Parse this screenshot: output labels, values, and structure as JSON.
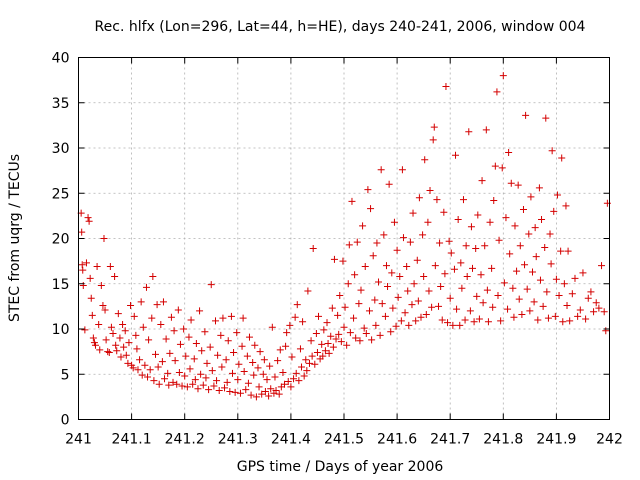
{
  "chart_data": {
    "type": "scatter",
    "title": "Rec. hlfx (Lon=296, Lat=44, h=HE), days 240-241, 2006, window 004",
    "xlabel": "GPS time / Days of year 2006",
    "ylabel": "STEC from uqrg / TECUs",
    "xlim": [
      241,
      242
    ],
    "ylim": [
      0,
      40
    ],
    "xticks": [
      241,
      241.1,
      241.2,
      241.3,
      241.4,
      241.5,
      241.6,
      241.7,
      241.8,
      241.9,
      242
    ],
    "xtick_labels": [
      "241",
      "241.1",
      "241.2",
      "241.3",
      "241.4",
      "241.5",
      "241.6",
      "241.7",
      "241.8",
      "241.9",
      "242"
    ],
    "yticks": [
      0,
      5,
      10,
      15,
      20,
      25,
      30,
      35,
      40
    ],
    "ytick_labels": [
      "0",
      "5",
      "10",
      "15",
      "20",
      "25",
      "30",
      "35",
      "40"
    ],
    "grid": true,
    "marker": "plus",
    "color": "#d40000",
    "points": [
      [
        241.005,
        22.8
      ],
      [
        241.006,
        20.7
      ],
      [
        241.007,
        17.1
      ],
      [
        241.008,
        16.5
      ],
      [
        241.009,
        14.8
      ],
      [
        241.012,
        9.9
      ],
      [
        241.015,
        17.3
      ],
      [
        241.018,
        22.3
      ],
      [
        241.02,
        21.9
      ],
      [
        241.022,
        15.6
      ],
      [
        241.024,
        13.4
      ],
      [
        241.026,
        11.5
      ],
      [
        241.028,
        9.0
      ],
      [
        241.03,
        8.5
      ],
      [
        241.032,
        8.2
      ],
      [
        241.035,
        16.9
      ],
      [
        241.038,
        10.5
      ],
      [
        241.04,
        7.7
      ],
      [
        241.043,
        14.8
      ],
      [
        241.046,
        12.6
      ],
      [
        241.048,
        20.0
      ],
      [
        241.05,
        12.1
      ],
      [
        241.052,
        8.8
      ],
      [
        241.055,
        7.5
      ],
      [
        241.058,
        7.4
      ],
      [
        241.06,
        16.9
      ],
      [
        241.062,
        10.2
      ],
      [
        241.065,
        9.5
      ],
      [
        241.068,
        15.8
      ],
      [
        241.07,
        8.2
      ],
      [
        241.072,
        7.6
      ],
      [
        241.075,
        11.7
      ],
      [
        241.078,
        9.0
      ],
      [
        241.08,
        6.9
      ],
      [
        241.083,
        10.5
      ],
      [
        241.085,
        8.0
      ],
      [
        241.088,
        9.8
      ],
      [
        241.09,
        7.1
      ],
      [
        241.093,
        6.2
      ],
      [
        241.095,
        8.5
      ],
      [
        241.098,
        12.6
      ],
      [
        241.1,
        6.0
      ],
      [
        241.103,
        5.7
      ],
      [
        241.105,
        11.4
      ],
      [
        241.108,
        9.3
      ],
      [
        241.11,
        7.8
      ],
      [
        241.112,
        5.5
      ],
      [
        241.115,
        6.6
      ],
      [
        241.118,
        13.0
      ],
      [
        241.12,
        4.9
      ],
      [
        241.122,
        10.2
      ],
      [
        241.125,
        6.0
      ],
      [
        241.128,
        14.6
      ],
      [
        241.13,
        4.7
      ],
      [
        241.132,
        8.8
      ],
      [
        241.135,
        5.5
      ],
      [
        241.138,
        11.2
      ],
      [
        241.14,
        15.8
      ],
      [
        241.142,
        4.3
      ],
      [
        241.145,
        7.2
      ],
      [
        241.148,
        12.7
      ],
      [
        241.15,
        5.8
      ],
      [
        241.152,
        3.9
      ],
      [
        241.155,
        10.5
      ],
      [
        241.158,
        6.4
      ],
      [
        241.16,
        13.0
      ],
      [
        241.162,
        4.5
      ],
      [
        241.165,
        8.9
      ],
      [
        241.168,
        5.1
      ],
      [
        241.17,
        3.8
      ],
      [
        241.172,
        7.3
      ],
      [
        241.175,
        11.3
      ],
      [
        241.178,
        4.1
      ],
      [
        241.18,
        9.8
      ],
      [
        241.182,
        6.5
      ],
      [
        241.185,
        3.9
      ],
      [
        241.188,
        12.1
      ],
      [
        241.19,
        5.2
      ],
      [
        241.192,
        8.3
      ],
      [
        241.195,
        3.7
      ],
      [
        241.198,
        10.0
      ],
      [
        241.2,
        4.8
      ],
      [
        241.202,
        7.0
      ],
      [
        241.205,
        3.6
      ],
      [
        241.208,
        9.1
      ],
      [
        241.21,
        5.6
      ],
      [
        241.212,
        11.0
      ],
      [
        241.215,
        3.9
      ],
      [
        241.218,
        6.7
      ],
      [
        241.22,
        4.4
      ],
      [
        241.222,
        8.4
      ],
      [
        241.225,
        3.4
      ],
      [
        241.228,
        12.0
      ],
      [
        241.23,
        5.0
      ],
      [
        241.232,
        7.6
      ],
      [
        241.235,
        3.8
      ],
      [
        241.238,
        9.7
      ],
      [
        241.24,
        4.6
      ],
      [
        241.242,
        6.2
      ],
      [
        241.245,
        3.3
      ],
      [
        241.248,
        8.0
      ],
      [
        241.25,
        14.9
      ],
      [
        241.252,
        5.4
      ],
      [
        241.255,
        3.7
      ],
      [
        241.258,
        10.9
      ],
      [
        241.26,
        4.3
      ],
      [
        241.262,
        7.1
      ],
      [
        241.265,
        3.2
      ],
      [
        241.268,
        9.3
      ],
      [
        241.27,
        5.8
      ],
      [
        241.272,
        11.2
      ],
      [
        241.275,
        3.5
      ],
      [
        241.278,
        6.6
      ],
      [
        241.28,
        4.1
      ],
      [
        241.282,
        8.7
      ],
      [
        241.285,
        3.1
      ],
      [
        241.288,
        11.4
      ],
      [
        241.29,
        5.1
      ],
      [
        241.292,
        7.4
      ],
      [
        241.295,
        3.0
      ],
      [
        241.298,
        9.6
      ],
      [
        241.3,
        4.4
      ],
      [
        241.302,
        6.1
      ],
      [
        241.305,
        2.9
      ],
      [
        241.308,
        8.1
      ],
      [
        241.31,
        11.2
      ],
      [
        241.312,
        5.3
      ],
      [
        241.315,
        3.3
      ],
      [
        241.318,
        7.0
      ],
      [
        241.32,
        4.0
      ],
      [
        241.322,
        9.1
      ],
      [
        241.325,
        2.7
      ],
      [
        241.328,
        6.3
      ],
      [
        241.33,
        4.9
      ],
      [
        241.332,
        8.2
      ],
      [
        241.335,
        2.5
      ],
      [
        241.338,
        5.7
      ],
      [
        241.34,
        3.6
      ],
      [
        241.342,
        7.5
      ],
      [
        241.345,
        2.8
      ],
      [
        241.348,
        5.0
      ],
      [
        241.35,
        6.6
      ],
      [
        241.352,
        3.1
      ],
      [
        241.355,
        4.4
      ],
      [
        241.358,
        2.6
      ],
      [
        241.36,
        5.9
      ],
      [
        241.362,
        3.4
      ],
      [
        241.365,
        10.2
      ],
      [
        241.368,
        2.9
      ],
      [
        241.37,
        4.7
      ],
      [
        241.372,
        3.2
      ],
      [
        241.375,
        6.5
      ],
      [
        241.378,
        2.8
      ],
      [
        241.38,
        7.7
      ],
      [
        241.382,
        3.6
      ],
      [
        241.385,
        5.2
      ],
      [
        241.388,
        3.9
      ],
      [
        241.39,
        8.1
      ],
      [
        241.392,
        9.6
      ],
      [
        241.395,
        4.2
      ],
      [
        241.398,
        10.4
      ],
      [
        241.4,
        3.6
      ],
      [
        241.402,
        6.9
      ],
      [
        241.405,
        4.5
      ],
      [
        241.408,
        11.3
      ],
      [
        241.41,
        5.1
      ],
      [
        241.412,
        12.7
      ],
      [
        241.415,
        4.3
      ],
      [
        241.418,
        7.8
      ],
      [
        241.42,
        5.8
      ],
      [
        241.422,
        10.8
      ],
      [
        241.425,
        4.8
      ],
      [
        241.428,
        6.6
      ],
      [
        241.43,
        5.4
      ],
      [
        241.432,
        14.2
      ],
      [
        241.435,
        6.2
      ],
      [
        241.438,
        8.7
      ],
      [
        241.44,
        7.0
      ],
      [
        241.442,
        18.9
      ],
      [
        241.445,
        6.1
      ],
      [
        241.448,
        9.5
      ],
      [
        241.45,
        7.4
      ],
      [
        241.452,
        11.4
      ],
      [
        241.455,
        6.7
      ],
      [
        241.458,
        8.3
      ],
      [
        241.46,
        7.0
      ],
      [
        241.462,
        9.9
      ],
      [
        241.465,
        7.6
      ],
      [
        241.468,
        10.7
      ],
      [
        241.47,
        8.4
      ],
      [
        241.472,
        7.3
      ],
      [
        241.475,
        9.2
      ],
      [
        241.478,
        12.3
      ],
      [
        241.48,
        8.0
      ],
      [
        241.482,
        17.7
      ],
      [
        241.485,
        8.9
      ],
      [
        241.488,
        11.5
      ],
      [
        241.49,
        9.4
      ],
      [
        241.492,
        13.7
      ],
      [
        241.495,
        8.6
      ],
      [
        241.498,
        17.5
      ],
      [
        241.5,
        10.2
      ],
      [
        241.502,
        12.4
      ],
      [
        241.505,
        8.2
      ],
      [
        241.508,
        15.0
      ],
      [
        241.51,
        19.3
      ],
      [
        241.512,
        9.6
      ],
      [
        241.515,
        24.1
      ],
      [
        241.518,
        11.2
      ],
      [
        241.52,
        16.0
      ],
      [
        241.522,
        9.0
      ],
      [
        241.525,
        19.6
      ],
      [
        241.528,
        12.8
      ],
      [
        241.53,
        8.7
      ],
      [
        241.532,
        14.3
      ],
      [
        241.535,
        21.4
      ],
      [
        241.538,
        10.1
      ],
      [
        241.54,
        16.9
      ],
      [
        241.542,
        9.5
      ],
      [
        241.545,
        25.4
      ],
      [
        241.548,
        12.0
      ],
      [
        241.55,
        23.3
      ],
      [
        241.552,
        8.8
      ],
      [
        241.555,
        18.1
      ],
      [
        241.558,
        13.2
      ],
      [
        241.56,
        10.4
      ],
      [
        241.562,
        19.5
      ],
      [
        241.565,
        15.2
      ],
      [
        241.568,
        9.3
      ],
      [
        241.57,
        27.6
      ],
      [
        241.572,
        12.8
      ],
      [
        241.575,
        20.4
      ],
      [
        241.578,
        11.4
      ],
      [
        241.58,
        17.0
      ],
      [
        241.582,
        14.7
      ],
      [
        241.585,
        26.0
      ],
      [
        241.588,
        9.7
      ],
      [
        241.59,
        16.2
      ],
      [
        241.592,
        12.3
      ],
      [
        241.595,
        21.8
      ],
      [
        241.598,
        10.3
      ],
      [
        241.6,
        18.7
      ],
      [
        241.602,
        13.5
      ],
      [
        241.605,
        15.8
      ],
      [
        241.608,
        10.9
      ],
      [
        241.61,
        27.6
      ],
      [
        241.612,
        20.1
      ],
      [
        241.615,
        11.8
      ],
      [
        241.618,
        16.9
      ],
      [
        241.62,
        14.2
      ],
      [
        241.622,
        10.4
      ],
      [
        241.625,
        19.6
      ],
      [
        241.628,
        12.7
      ],
      [
        241.63,
        22.8
      ],
      [
        241.632,
        15.0
      ],
      [
        241.635,
        10.9
      ],
      [
        241.638,
        17.6
      ],
      [
        241.64,
        13.1
      ],
      [
        241.642,
        24.5
      ],
      [
        241.645,
        11.3
      ],
      [
        241.648,
        20.4
      ],
      [
        241.65,
        15.8
      ],
      [
        241.652,
        28.7
      ],
      [
        241.655,
        11.6
      ],
      [
        241.658,
        21.8
      ],
      [
        241.66,
        14.2
      ],
      [
        241.662,
        25.3
      ],
      [
        241.665,
        12.4
      ],
      [
        241.668,
        30.9
      ],
      [
        241.67,
        32.3
      ],
      [
        241.672,
        17.0
      ],
      [
        241.675,
        24.3
      ],
      [
        241.678,
        12.5
      ],
      [
        241.68,
        19.5
      ],
      [
        241.682,
        14.7
      ],
      [
        241.685,
        11.0
      ],
      [
        241.688,
        22.9
      ],
      [
        241.69,
        16.1
      ],
      [
        241.692,
        36.8
      ],
      [
        241.695,
        10.7
      ],
      [
        241.698,
        19.7
      ],
      [
        241.7,
        13.4
      ],
      [
        241.702,
        18.4
      ],
      [
        241.705,
        10.4
      ],
      [
        241.708,
        16.6
      ],
      [
        241.71,
        29.2
      ],
      [
        241.712,
        12.2
      ],
      [
        241.715,
        22.1
      ],
      [
        241.718,
        10.4
      ],
      [
        241.72,
        17.3
      ],
      [
        241.722,
        14.5
      ],
      [
        241.725,
        24.3
      ],
      [
        241.728,
        11.0
      ],
      [
        241.73,
        19.2
      ],
      [
        241.732,
        15.8
      ],
      [
        241.735,
        31.8
      ],
      [
        241.738,
        12.0
      ],
      [
        241.74,
        21.3
      ],
      [
        241.742,
        16.7
      ],
      [
        241.745,
        10.8
      ],
      [
        241.748,
        18.9
      ],
      [
        241.75,
        13.6
      ],
      [
        241.752,
        22.6
      ],
      [
        241.755,
        11.1
      ],
      [
        241.758,
        16.0
      ],
      [
        241.76,
        26.4
      ],
      [
        241.762,
        12.9
      ],
      [
        241.765,
        19.2
      ],
      [
        241.768,
        32.0
      ],
      [
        241.77,
        14.3
      ],
      [
        241.772,
        10.8
      ],
      [
        241.775,
        21.8
      ],
      [
        241.778,
        16.7
      ],
      [
        241.78,
        12.4
      ],
      [
        241.782,
        24.2
      ],
      [
        241.785,
        28.0
      ],
      [
        241.788,
        36.2
      ],
      [
        241.79,
        13.7
      ],
      [
        241.792,
        19.8
      ],
      [
        241.795,
        10.9
      ],
      [
        241.798,
        27.8
      ],
      [
        241.8,
        38.0
      ],
      [
        241.802,
        15.1
      ],
      [
        241.805,
        22.3
      ],
      [
        241.808,
        12.2
      ],
      [
        241.81,
        29.5
      ],
      [
        241.812,
        18.3
      ],
      [
        241.815,
        26.1
      ],
      [
        241.818,
        14.5
      ],
      [
        241.82,
        11.3
      ],
      [
        241.822,
        21.4
      ],
      [
        241.825,
        16.4
      ],
      [
        241.828,
        25.9
      ],
      [
        241.83,
        13.3
      ],
      [
        241.832,
        19.2
      ],
      [
        241.835,
        11.6
      ],
      [
        241.838,
        23.2
      ],
      [
        241.84,
        17.1
      ],
      [
        241.842,
        33.6
      ],
      [
        241.845,
        14.4
      ],
      [
        241.848,
        20.5
      ],
      [
        241.85,
        12.0
      ],
      [
        241.852,
        24.6
      ],
      [
        241.855,
        16.3
      ],
      [
        241.858,
        13.0
      ],
      [
        241.86,
        21.2
      ],
      [
        241.862,
        18.0
      ],
      [
        241.865,
        11.0
      ],
      [
        241.868,
        25.6
      ],
      [
        241.87,
        15.4
      ],
      [
        241.872,
        22.1
      ],
      [
        241.875,
        12.5
      ],
      [
        241.878,
        19.0
      ],
      [
        241.88,
        33.3
      ],
      [
        241.882,
        14.1
      ],
      [
        241.885,
        11.2
      ],
      [
        241.888,
        20.5
      ],
      [
        241.89,
        17.2
      ],
      [
        241.892,
        29.7
      ],
      [
        241.895,
        23.0
      ],
      [
        241.898,
        11.4
      ],
      [
        241.9,
        15.5
      ],
      [
        241.902,
        24.8
      ],
      [
        241.905,
        13.7
      ],
      [
        241.908,
        18.6
      ],
      [
        241.91,
        28.9
      ],
      [
        241.912,
        10.8
      ],
      [
        241.915,
        15.0
      ],
      [
        241.918,
        23.6
      ],
      [
        241.92,
        12.6
      ],
      [
        241.922,
        18.6
      ],
      [
        241.925,
        10.9
      ],
      [
        241.93,
        13.9
      ],
      [
        241.935,
        15.6
      ],
      [
        241.94,
        11.4
      ],
      [
        241.945,
        12.1
      ],
      [
        241.95,
        16.2
      ],
      [
        241.955,
        11.1
      ],
      [
        241.96,
        13.4
      ],
      [
        241.965,
        14.1
      ],
      [
        241.97,
        11.9
      ],
      [
        241.975,
        12.9
      ],
      [
        241.98,
        12.3
      ],
      [
        241.985,
        17.0
      ],
      [
        241.99,
        11.9
      ],
      [
        241.993,
        9.8
      ],
      [
        241.996,
        23.9
      ]
    ]
  }
}
